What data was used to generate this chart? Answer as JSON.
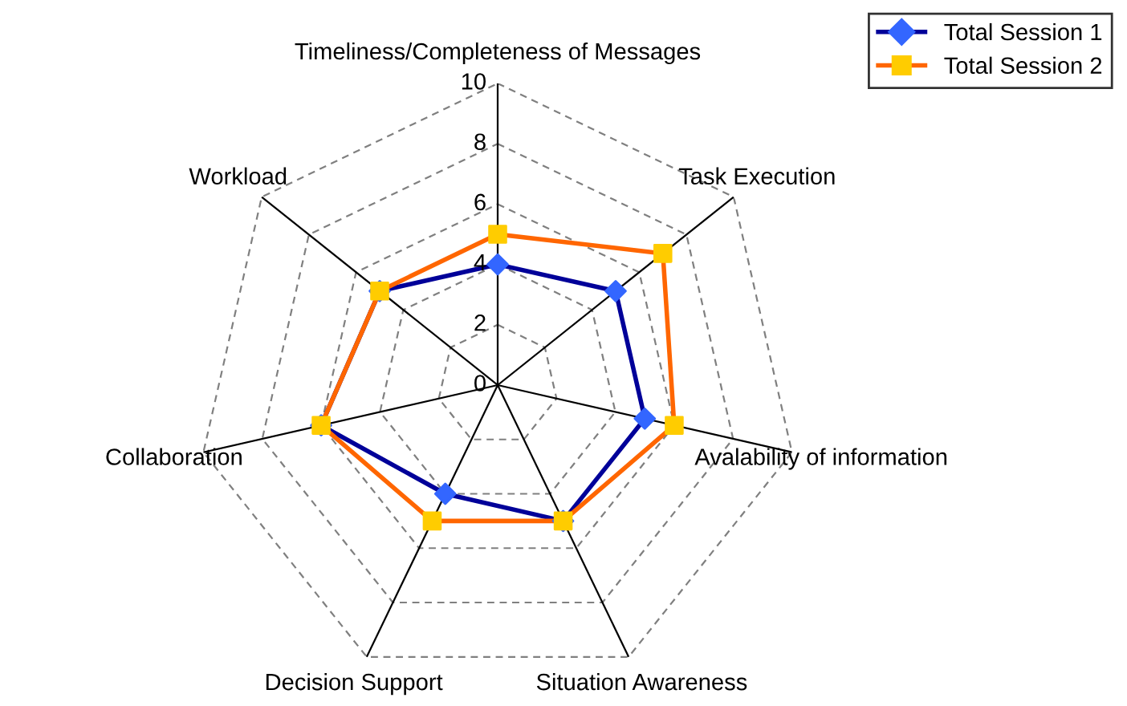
{
  "chart_data": {
    "type": "radar",
    "categories": [
      "Timeliness/Completeness of Messages",
      "Task Execution",
      "Avalability of information",
      "Situation Awareness",
      "Decision Support",
      "Collaboration",
      "Workload"
    ],
    "series": [
      {
        "name": "Total Session 1",
        "color": "#000099",
        "marker": "diamond",
        "colors": [
          "#3366ff",
          "#3366ff",
          "#3366ff",
          "#3366ff",
          "#3366ff",
          "#3366ff",
          "#3366ff"
        ],
        "values": [
          4,
          5,
          5,
          5,
          4,
          6,
          5
        ]
      },
      {
        "name": "Total Session 2",
        "color": "#ff6600",
        "marker": "square",
        "colors": [
          "#ffcc00",
          "#ffcc00",
          "#ffcc00",
          "#ffcc00",
          "#ffcc00",
          "#ffcc00",
          "#ffcc00"
        ],
        "values": [
          5,
          7,
          6,
          5,
          5,
          6,
          5
        ]
      }
    ],
    "ylim": [
      0,
      10
    ],
    "yticks": [
      0,
      2,
      4,
      6,
      8,
      10
    ],
    "grid": true,
    "legend": "top right",
    "line_style": "solid"
  }
}
